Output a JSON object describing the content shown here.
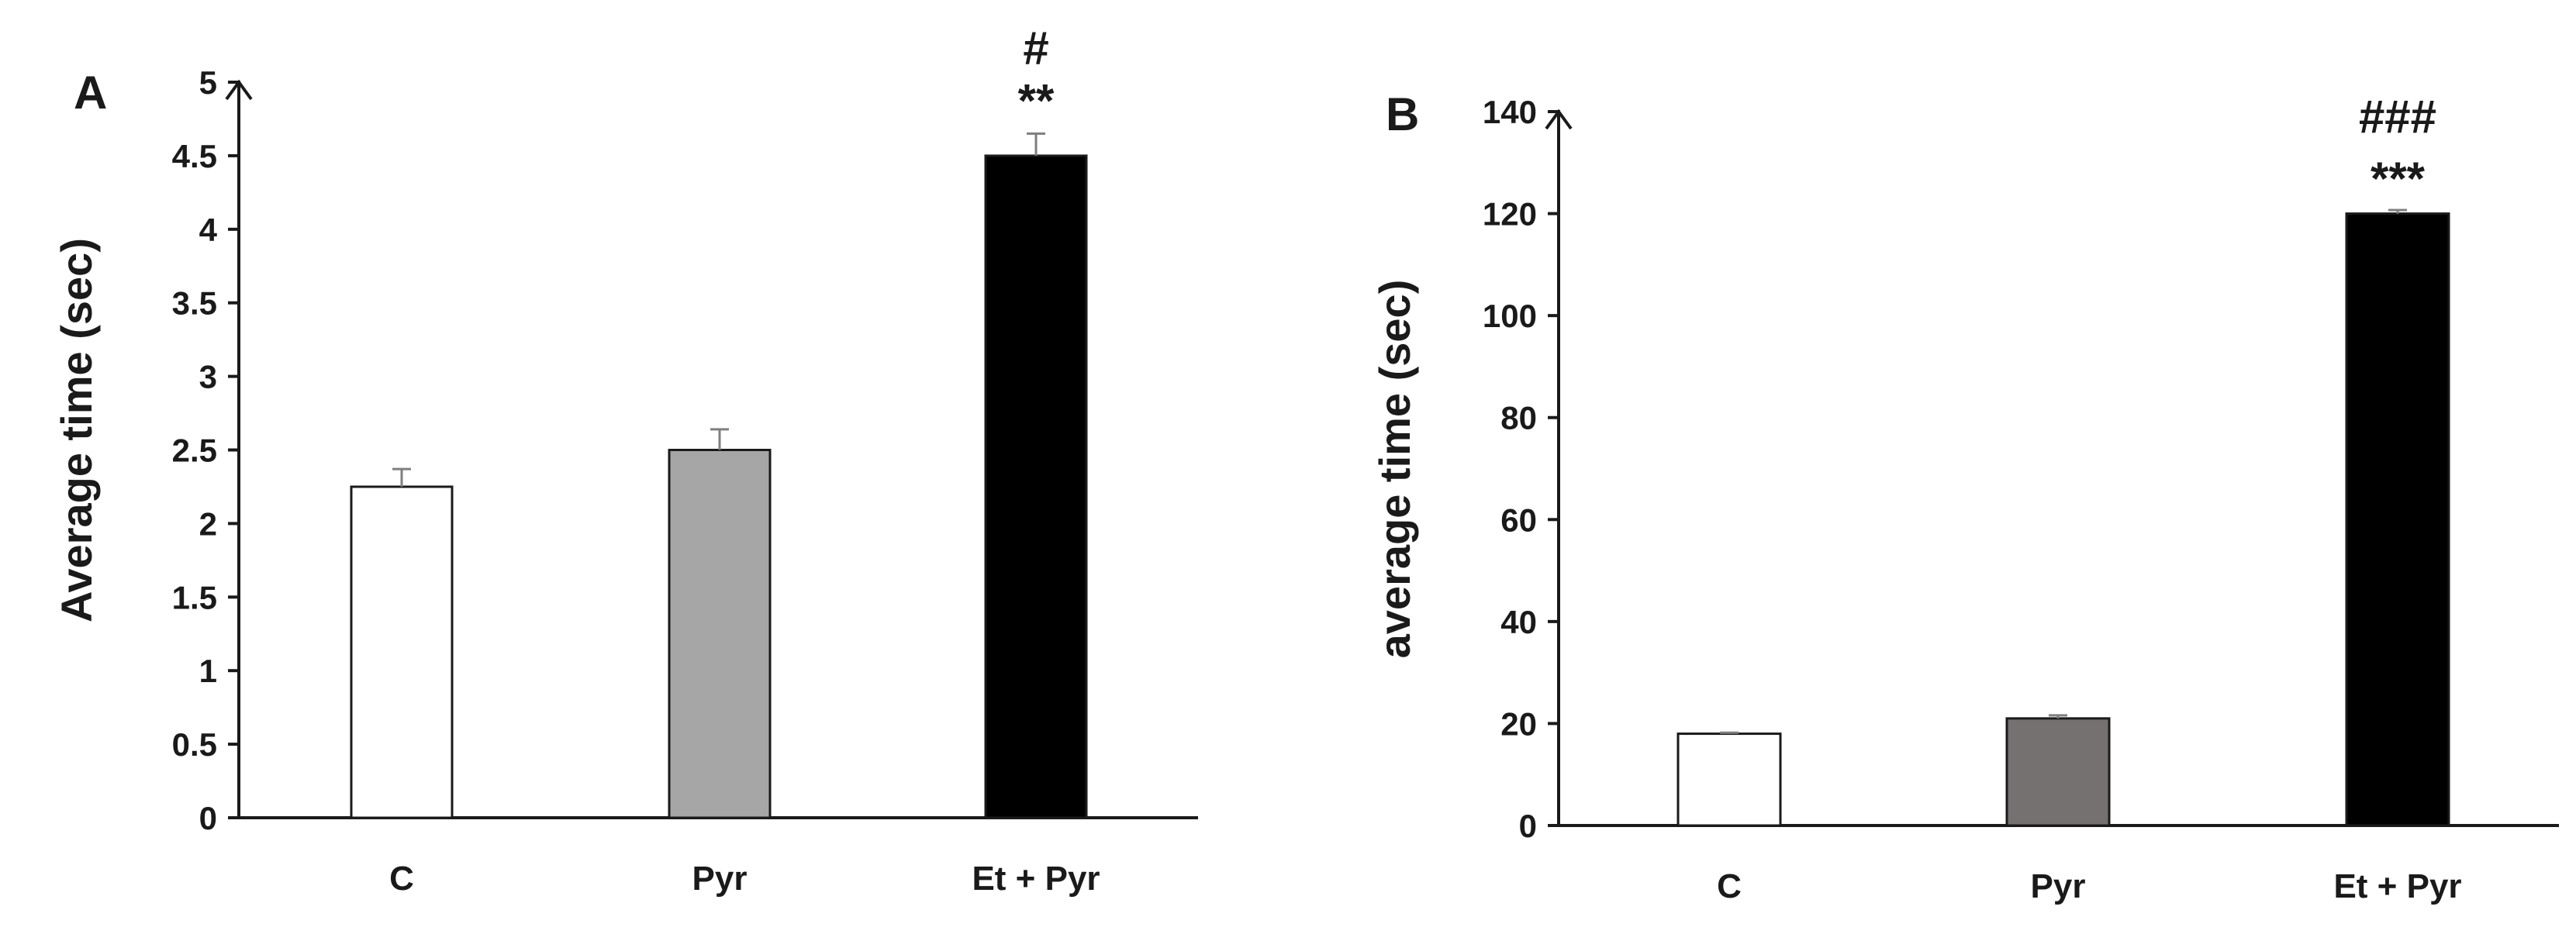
{
  "chart_data": [
    {
      "type": "bar",
      "panel_label": "A",
      "title": "",
      "xlabel": "",
      "ylabel": "Average time (sec)",
      "ylim": [
        0,
        5
      ],
      "yticks": [
        "0",
        "0.5",
        "1",
        "1.5",
        "2",
        "2.5",
        "3",
        "3.5",
        "4",
        "4.5",
        "5"
      ],
      "ytick_values": [
        0,
        0.5,
        1,
        1.5,
        2,
        2.5,
        3,
        3.5,
        4,
        4.5,
        5
      ],
      "grid": false,
      "categories": [
        "C",
        "Pyr",
        "Et + Pyr"
      ],
      "values": [
        2.25,
        2.5,
        4.5
      ],
      "errors": [
        0.12,
        0.14,
        0.15
      ],
      "colors": [
        "#ffffff",
        "#a6a6a6",
        "#000000"
      ],
      "annotations": [
        {
          "category": "Et + Pyr",
          "lines": [
            "#",
            "**"
          ]
        }
      ]
    },
    {
      "type": "bar",
      "panel_label": "B",
      "title": "",
      "xlabel": "",
      "ylabel": "average time (sec)",
      "ylim": [
        0,
        140
      ],
      "yticks": [
        "0",
        "20",
        "40",
        "60",
        "80",
        "100",
        "120",
        "140"
      ],
      "ytick_values": [
        0,
        20,
        40,
        60,
        80,
        100,
        120,
        140
      ],
      "grid": false,
      "categories": [
        "C",
        "Pyr",
        "Et + Pyr"
      ],
      "values": [
        18,
        21,
        120
      ],
      "errors": [
        0.2,
        0.6,
        0.7
      ],
      "colors": [
        "#ffffff",
        "#767171",
        "#000000"
      ],
      "annotations": [
        {
          "category": "Et + Pyr",
          "lines": [
            "###",
            "***"
          ]
        }
      ]
    }
  ]
}
